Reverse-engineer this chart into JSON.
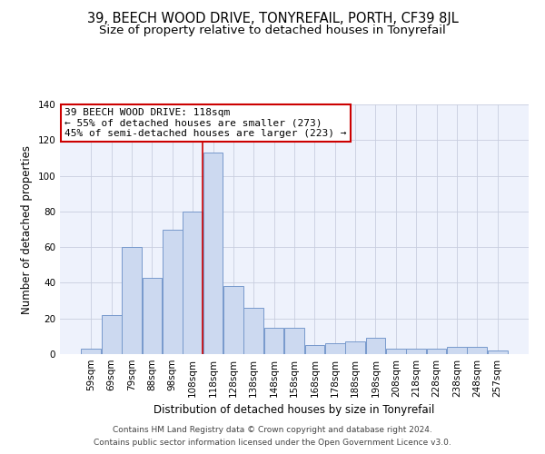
{
  "title": "39, BEECH WOOD DRIVE, TONYREFAIL, PORTH, CF39 8JL",
  "subtitle": "Size of property relative to detached houses in Tonyrefail",
  "xlabel": "Distribution of detached houses by size in Tonyrefail",
  "ylabel": "Number of detached properties",
  "bar_values": [
    3,
    22,
    60,
    43,
    70,
    80,
    113,
    38,
    26,
    15,
    15,
    5,
    6,
    7,
    9,
    3,
    3,
    3,
    4,
    4,
    2
  ],
  "bin_labels": [
    "59sqm",
    "69sqm",
    "79sqm",
    "88sqm",
    "98sqm",
    "108sqm",
    "118sqm",
    "128sqm",
    "138sqm",
    "148sqm",
    "158sqm",
    "168sqm",
    "178sqm",
    "188sqm",
    "198sqm",
    "208sqm",
    "218sqm",
    "228sqm",
    "238sqm",
    "248sqm",
    "257sqm"
  ],
  "bar_color": "#ccd9f0",
  "bar_edge_color": "#7799cc",
  "background_color": "#eef2fc",
  "grid_color": "#c8cedf",
  "annotation_line1": "39 BEECH WOOD DRIVE: 118sqm",
  "annotation_line2": "← 55% of detached houses are smaller (273)",
  "annotation_line3": "45% of semi-detached houses are larger (223) →",
  "annotation_box_color": "white",
  "annotation_box_edge_color": "#cc0000",
  "redline_bin": 6,
  "ylim": [
    0,
    140
  ],
  "yticks": [
    0,
    20,
    40,
    60,
    80,
    100,
    120,
    140
  ],
  "title_fontsize": 10.5,
  "subtitle_fontsize": 9.5,
  "xlabel_fontsize": 8.5,
  "ylabel_fontsize": 8.5,
  "tick_fontsize": 7.5,
  "ann_fontsize": 8,
  "footer_line1": "Contains HM Land Registry data © Crown copyright and database right 2024.",
  "footer_line2": "Contains public sector information licensed under the Open Government Licence v3.0.",
  "footer_fontsize": 6.5
}
